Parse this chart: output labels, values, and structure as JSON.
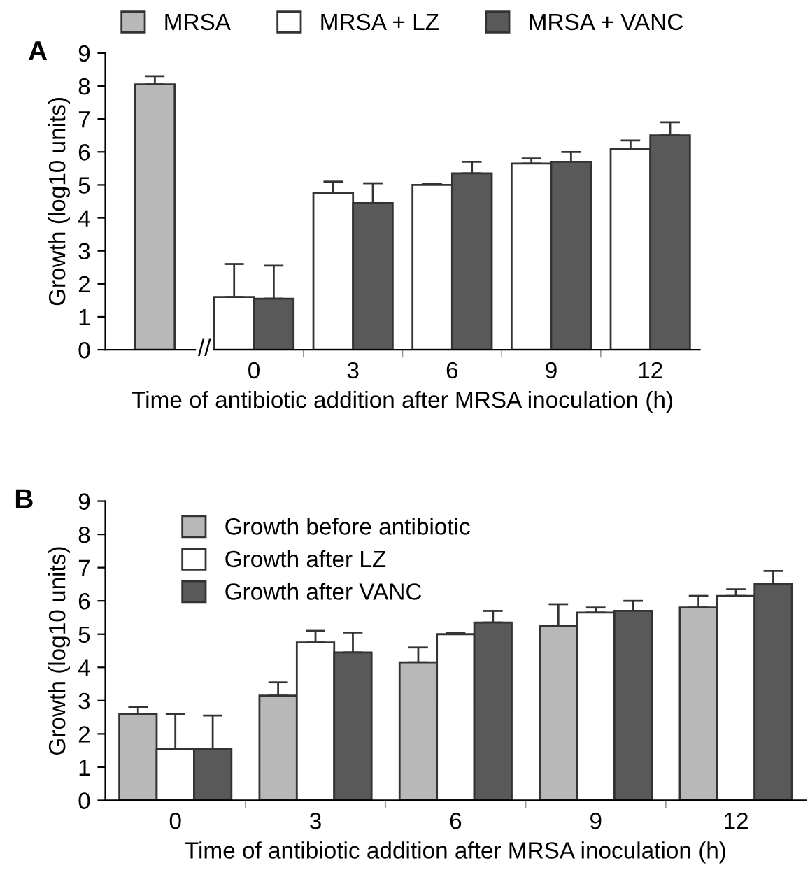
{
  "chart_data": [
    {
      "type": "bar",
      "title": "A",
      "xlabel": "Time of antibiotic addition after MRSA inoculation (h)",
      "ylabel": "Growth (log10 units)",
      "categories": [
        null,
        "0",
        "3",
        "6",
        "9",
        "12"
      ],
      "series": [
        {
          "name": "MRSA",
          "color": "#b8b8b8",
          "values": [
            8.05,
            null,
            null,
            null,
            null,
            null
          ],
          "errors": [
            [
              8.05,
              8.3
            ],
            null,
            null,
            null,
            null,
            null
          ]
        },
        {
          "name": "MRSA + LZ",
          "color": "#ffffff",
          "values": [
            null,
            1.6,
            4.75,
            5.0,
            5.65,
            6.1
          ],
          "errors": [
            null,
            [
              1.6,
              2.6
            ],
            [
              4.75,
              5.1
            ],
            [
              5.0,
              5.03
            ],
            [
              5.65,
              5.8
            ],
            [
              6.1,
              6.35
            ]
          ]
        },
        {
          "name": "MRSA + VANC",
          "color": "#595959",
          "values": [
            null,
            1.55,
            4.45,
            5.35,
            5.7,
            6.5
          ],
          "errors": [
            null,
            [
              1.55,
              2.55
            ],
            [
              4.45,
              5.05
            ],
            [
              5.35,
              5.7
            ],
            [
              5.7,
              6.0
            ],
            [
              6.5,
              6.9
            ]
          ]
        }
      ],
      "ylim": [
        0,
        9
      ],
      "yticks": [
        0,
        1,
        2,
        3,
        4,
        5,
        6,
        7,
        8,
        9
      ],
      "legend": "top",
      "grid": false,
      "annotations": [
        "//"
      ]
    },
    {
      "type": "bar",
      "title": "B",
      "xlabel": "Time of antibiotic addition after MRSA inoculation (h)",
      "ylabel": "Growth (log10 units)",
      "categories": [
        "0",
        "3",
        "6",
        "9",
        "12"
      ],
      "series": [
        {
          "name": "Growth before antibiotic",
          "color": "#b8b8b8",
          "values": [
            2.6,
            3.15,
            4.15,
            5.25,
            5.8
          ],
          "errors": [
            [
              2.6,
              2.8
            ],
            [
              3.15,
              3.55
            ],
            [
              4.15,
              4.6
            ],
            [
              5.25,
              5.9
            ],
            [
              5.8,
              6.15
            ]
          ]
        },
        {
          "name": "Growth after LZ",
          "color": "#ffffff",
          "values": [
            1.55,
            4.75,
            5.0,
            5.65,
            6.15
          ],
          "errors": [
            [
              1.55,
              2.6
            ],
            [
              4.75,
              5.1
            ],
            [
              5.0,
              5.05
            ],
            [
              5.65,
              5.8
            ],
            [
              6.15,
              6.35
            ]
          ]
        },
        {
          "name": "Growth after VANC",
          "color": "#595959",
          "values": [
            1.55,
            4.45,
            5.35,
            5.7,
            6.5
          ],
          "errors": [
            [
              1.55,
              2.55
            ],
            [
              4.45,
              5.05
            ],
            [
              5.35,
              5.7
            ],
            [
              5.7,
              6.0
            ],
            [
              6.5,
              6.9
            ]
          ]
        }
      ],
      "ylim": [
        0,
        9
      ],
      "yticks": [
        0,
        1,
        2,
        3,
        4,
        5,
        6,
        7,
        8,
        9
      ],
      "legend": "top left",
      "grid": false
    }
  ]
}
